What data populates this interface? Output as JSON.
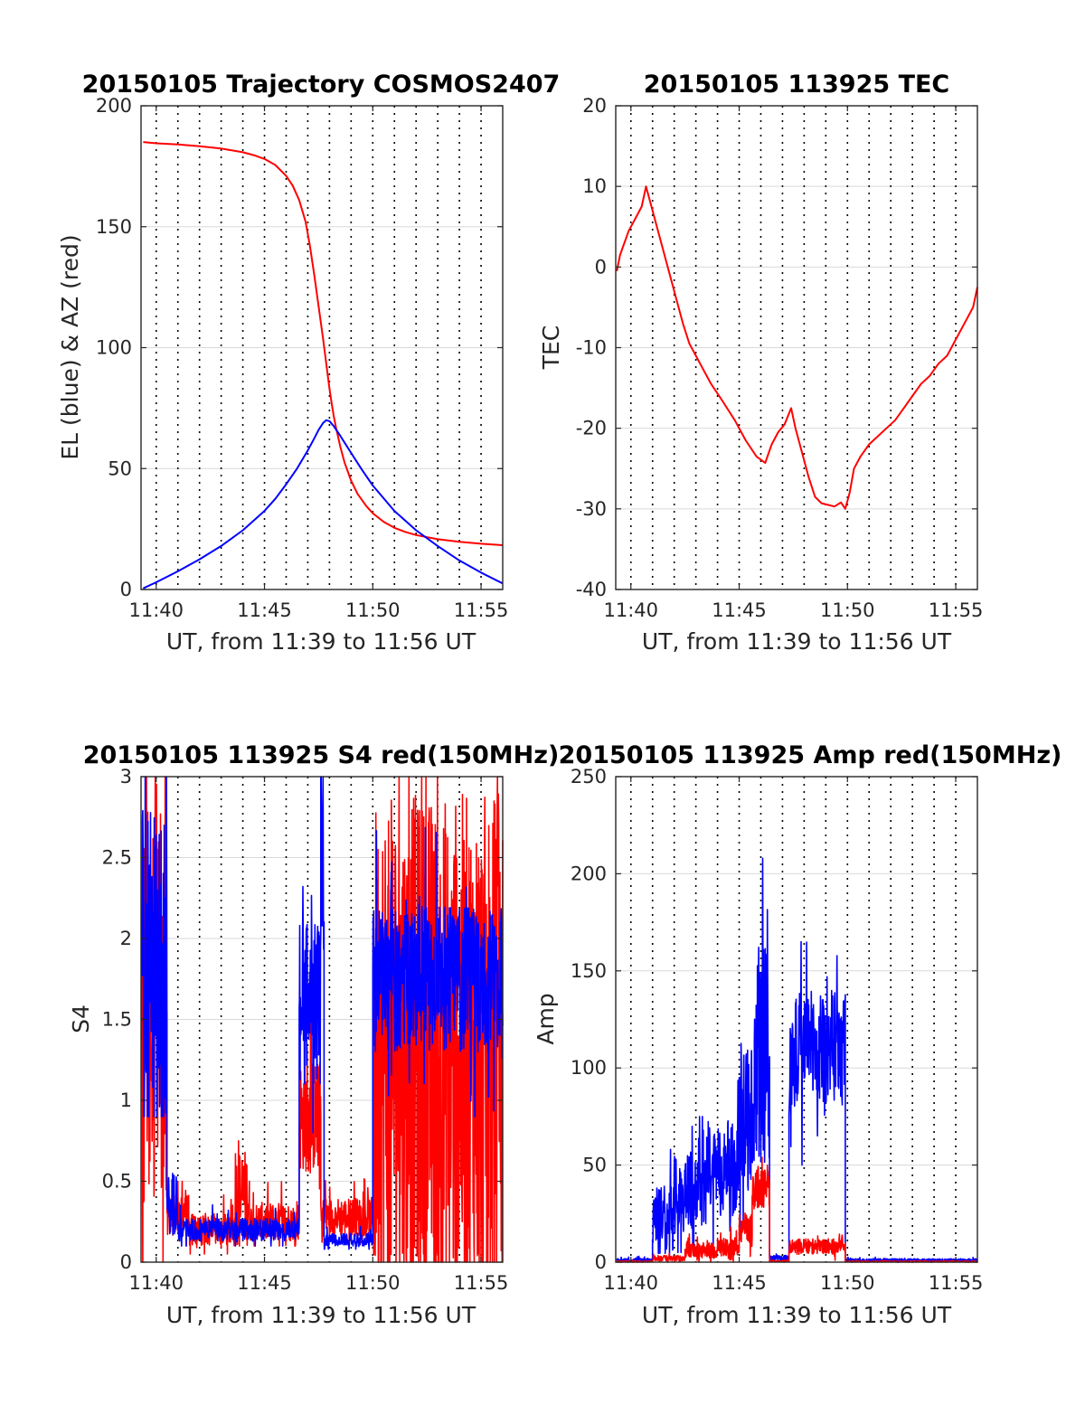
{
  "colors": {
    "red": "#ff0000",
    "blue": "#0000ff",
    "axis": "#262626"
  },
  "chart_data": [
    {
      "id": "trajectory",
      "type": "line",
      "title": "20150105 Trajectory COSMOS2407",
      "xlabel": "UT, from 11:39 to 11:56 UT",
      "ylabel": "EL (blue) & AZ (red)",
      "xlim": [
        39.3,
        56.0
      ],
      "ylim": [
        0,
        200
      ],
      "xticks": [
        40,
        45,
        50,
        55
      ],
      "xtick_labels": [
        "11:40",
        "11:45",
        "11:50",
        "11:55"
      ],
      "yticks": [
        0,
        50,
        100,
        150,
        200
      ],
      "ytick_labels": [
        "0",
        "50",
        "100",
        "150",
        "200"
      ],
      "minute_grid": true,
      "series": [
        {
          "name": "AZ",
          "color": "#ff0000",
          "x": [
            39.4,
            40,
            41,
            42,
            43,
            44,
            44.5,
            45,
            45.5,
            46,
            46.3,
            46.6,
            46.9,
            47.1,
            47.3,
            47.5,
            47.7,
            47.8,
            47.9,
            48,
            48.1,
            48.2,
            48.3,
            48.5,
            48.7,
            49,
            49.3,
            49.7,
            50,
            50.5,
            51,
            51.5,
            52,
            53,
            54,
            55,
            56
          ],
          "y": [
            185,
            184.5,
            184,
            183.3,
            182.3,
            180.8,
            179.6,
            178,
            175.5,
            171,
            167,
            161,
            152,
            142,
            130,
            117,
            104,
            97,
            90,
            83,
            77,
            71.5,
            67,
            59,
            52.5,
            45,
            39.5,
            34.5,
            31.5,
            28,
            25.5,
            23.8,
            22.5,
            20.8,
            19.7,
            18.9,
            18.3
          ]
        },
        {
          "name": "EL",
          "color": "#0000ff",
          "x": [
            39.4,
            40,
            41,
            42,
            43,
            44,
            45,
            45.5,
            46,
            46.5,
            47,
            47.3,
            47.5,
            47.7,
            47.85,
            48,
            48.2,
            48.5,
            49,
            49.5,
            50,
            51,
            52,
            53,
            54,
            55,
            56
          ],
          "y": [
            0.5,
            3,
            7.5,
            12.5,
            18,
            24.5,
            32.5,
            37.5,
            43.5,
            50,
            57.5,
            62.5,
            66,
            68.8,
            70,
            69.6,
            67.5,
            63.5,
            56.5,
            49.5,
            43,
            32.5,
            24.5,
            18,
            12,
            7,
            2.5
          ]
        }
      ]
    },
    {
      "id": "tec",
      "type": "line",
      "title": "20150105 113925 TEC",
      "xlabel": "UT, from 11:39 to 11:56 UT",
      "ylabel": "TEC",
      "xlim": [
        39.3,
        56.0
      ],
      "ylim": [
        -40,
        20
      ],
      "xticks": [
        40,
        45,
        50,
        55
      ],
      "xtick_labels": [
        "11:40",
        "11:45",
        "11:50",
        "11:55"
      ],
      "yticks": [
        -40,
        -30,
        -20,
        -10,
        0,
        10,
        20
      ],
      "ytick_labels": [
        "-40",
        "-30",
        "-20",
        "-10",
        "0",
        "10",
        "20"
      ],
      "minute_grid": true,
      "series": [
        {
          "name": "TEC",
          "color": "#ff0000",
          "x": [
            39.35,
            39.5,
            39.7,
            39.9,
            40.1,
            40.3,
            40.5,
            40.7,
            40.9,
            41.2,
            41.5,
            41.8,
            42.1,
            42.4,
            42.7,
            43.0,
            43.3,
            43.7,
            44.2,
            44.8,
            45.3,
            45.8,
            46.2,
            46.5,
            46.8,
            47.1,
            47.4,
            47.6,
            47.9,
            48.2,
            48.5,
            48.8,
            49.1,
            49.4,
            49.7,
            49.9,
            50.1,
            50.3,
            50.6,
            51.0,
            51.4,
            51.8,
            52.2,
            52.6,
            53.0,
            53.4,
            53.8,
            54.2,
            54.6,
            55.0,
            55.4,
            55.8,
            56.0
          ],
          "y": [
            -0.5,
            1.5,
            3,
            4.5,
            5.5,
            6.5,
            7.5,
            10,
            8,
            5,
            2,
            -1,
            -4,
            -7,
            -9.5,
            -11,
            -12.5,
            -14.5,
            -16.5,
            -19,
            -21.5,
            -23.5,
            -24.3,
            -22,
            -20.5,
            -19.5,
            -17.5,
            -20,
            -23,
            -26,
            -28.5,
            -29.3,
            -29.5,
            -29.7,
            -29.2,
            -30,
            -28,
            -25,
            -23.5,
            -22,
            -21,
            -20,
            -19,
            -17.5,
            -16,
            -14.5,
            -13.5,
            -12,
            -11,
            -9,
            -7,
            -5,
            -2.5
          ]
        }
      ]
    },
    {
      "id": "s4",
      "type": "line",
      "title": "20150105 113925 S4 red(150MHz)",
      "xlabel": "UT, from 11:39 to 11:56 UT",
      "ylabel": "S4",
      "xlim": [
        39.3,
        56.0
      ],
      "ylim": [
        0,
        3
      ],
      "xticks": [
        40,
        45,
        50,
        55
      ],
      "xtick_labels": [
        "11:40",
        "11:45",
        "11:50",
        "11:55"
      ],
      "yticks": [
        0,
        0.5,
        1,
        1.5,
        2,
        2.5,
        3
      ],
      "ytick_labels": [
        "0",
        "0.5",
        "1",
        "1.5",
        "2",
        "2.5",
        "3"
      ],
      "minute_grid": true,
      "series": [
        {
          "name": "S4 red",
          "color": "#ff0000",
          "segments": [
            {
              "x0": 39.35,
              "x1": 40.5,
              "base": 1.7,
              "amp": 1.4,
              "min": 0,
              "max": 3
            },
            {
              "x0": 40.5,
              "x1": 41.5,
              "base": 0.3,
              "amp": 0.15,
              "min": 0.1,
              "max": 0.5
            },
            {
              "x0": 41.5,
              "x1": 43.6,
              "base": 0.2,
              "amp": 0.1,
              "min": 0.05,
              "max": 0.45
            },
            {
              "x0": 43.6,
              "x1": 44.3,
              "base": 0.4,
              "amp": 0.3,
              "min": 0.1,
              "max": 0.75
            },
            {
              "x0": 44.3,
              "x1": 46.6,
              "base": 0.25,
              "amp": 0.12,
              "min": 0.1,
              "max": 0.5
            },
            {
              "x0": 46.6,
              "x1": 47.6,
              "base": 0.9,
              "amp": 0.35,
              "min": 0.4,
              "max": 1.6
            },
            {
              "x0": 47.6,
              "x1": 50.0,
              "base": 0.28,
              "amp": 0.12,
              "min": 0.12,
              "max": 0.55
            },
            {
              "x0": 50.0,
              "x1": 56.0,
              "base": 1.3,
              "amp": 1.6,
              "min": 0,
              "max": 3
            }
          ]
        },
        {
          "name": "S4 blue",
          "color": "#0000ff",
          "segments": [
            {
              "x0": 39.35,
              "x1": 40.5,
              "base": 1.8,
              "amp": 1.0,
              "min": 0.9,
              "max": 3
            },
            {
              "x0": 40.5,
              "x1": 41.0,
              "base": 0.35,
              "amp": 0.2,
              "min": 0.15,
              "max": 0.7
            },
            {
              "x0": 41.0,
              "x1": 46.6,
              "base": 0.2,
              "amp": 0.07,
              "min": 0.1,
              "max": 0.4
            },
            {
              "x0": 46.6,
              "x1": 47.6,
              "base": 1.6,
              "amp": 0.5,
              "min": 0.8,
              "max": 2.4
            },
            {
              "x0": 47.6,
              "x1": 47.75,
              "base": 2.5,
              "amp": 0.6,
              "min": 1.5,
              "max": 3
            },
            {
              "x0": 47.75,
              "x1": 50.0,
              "base": 0.14,
              "amp": 0.04,
              "min": 0.08,
              "max": 0.22
            },
            {
              "x0": 50.0,
              "x1": 56.0,
              "base": 1.75,
              "amp": 0.45,
              "min": 0.9,
              "max": 3
            }
          ]
        }
      ]
    },
    {
      "id": "amp",
      "type": "line",
      "title": "20150105 113925 Amp red(150MHz)",
      "xlabel": "UT, from 11:39 to 11:56 UT",
      "ylabel": "Amp",
      "xlim": [
        39.3,
        56.0
      ],
      "ylim": [
        0,
        250
      ],
      "xticks": [
        40,
        45,
        50,
        55
      ],
      "xtick_labels": [
        "11:40",
        "11:45",
        "11:50",
        "11:55"
      ],
      "yticks": [
        0,
        50,
        100,
        150,
        200,
        250
      ],
      "ytick_labels": [
        "0",
        "50",
        "100",
        "150",
        "200",
        "250"
      ],
      "minute_grid": true,
      "series": [
        {
          "name": "Amp blue",
          "color": "#0000ff",
          "segments": [
            {
              "x0": 39.35,
              "x1": 41.0,
              "base": 1,
              "amp": 1,
              "min": 0,
              "max": 4
            },
            {
              "x0": 41.0,
              "x1": 42.0,
              "base": 22,
              "amp": 18,
              "min": 0,
              "max": 60
            },
            {
              "x0": 42.0,
              "x1": 43.5,
              "base": 35,
              "amp": 20,
              "min": 5,
              "max": 75
            },
            {
              "x0": 43.5,
              "x1": 45.0,
              "base": 48,
              "amp": 25,
              "min": 8,
              "max": 95
            },
            {
              "x0": 45.0,
              "x1": 45.7,
              "base": 75,
              "amp": 40,
              "min": 15,
              "max": 150
            },
            {
              "x0": 45.7,
              "x1": 46.4,
              "base": 110,
              "amp": 60,
              "min": 20,
              "max": 208
            },
            {
              "x0": 46.4,
              "x1": 47.3,
              "base": 2,
              "amp": 1.5,
              "min": 0,
              "max": 5
            },
            {
              "x0": 47.3,
              "x1": 49.9,
              "base": 110,
              "amp": 30,
              "min": 50,
              "max": 165
            },
            {
              "x0": 49.9,
              "x1": 56.0,
              "base": 1,
              "amp": 0.8,
              "min": 0,
              "max": 3
            }
          ]
        },
        {
          "name": "Amp red",
          "color": "#ff0000",
          "segments": [
            {
              "x0": 39.35,
              "x1": 41.0,
              "base": 0.3,
              "amp": 0.3,
              "min": 0,
              "max": 1
            },
            {
              "x0": 41.0,
              "x1": 42.5,
              "base": 2,
              "amp": 1.5,
              "min": 0,
              "max": 6
            },
            {
              "x0": 42.5,
              "x1": 44.0,
              "base": 6,
              "amp": 4,
              "min": 0,
              "max": 15
            },
            {
              "x0": 44.0,
              "x1": 45.0,
              "base": 8,
              "amp": 5,
              "min": 0,
              "max": 20
            },
            {
              "x0": 45.0,
              "x1": 45.6,
              "base": 18,
              "amp": 8,
              "min": 3,
              "max": 35
            },
            {
              "x0": 45.6,
              "x1": 46.4,
              "base": 38,
              "amp": 12,
              "min": 10,
              "max": 65
            },
            {
              "x0": 46.4,
              "x1": 47.3,
              "base": 0.5,
              "amp": 0.4,
              "min": 0,
              "max": 2
            },
            {
              "x0": 47.3,
              "x1": 49.9,
              "base": 8,
              "amp": 4,
              "min": 1,
              "max": 16
            },
            {
              "x0": 49.9,
              "x1": 56.0,
              "base": 0.3,
              "amp": 0.3,
              "min": 0,
              "max": 1
            }
          ]
        }
      ]
    }
  ]
}
